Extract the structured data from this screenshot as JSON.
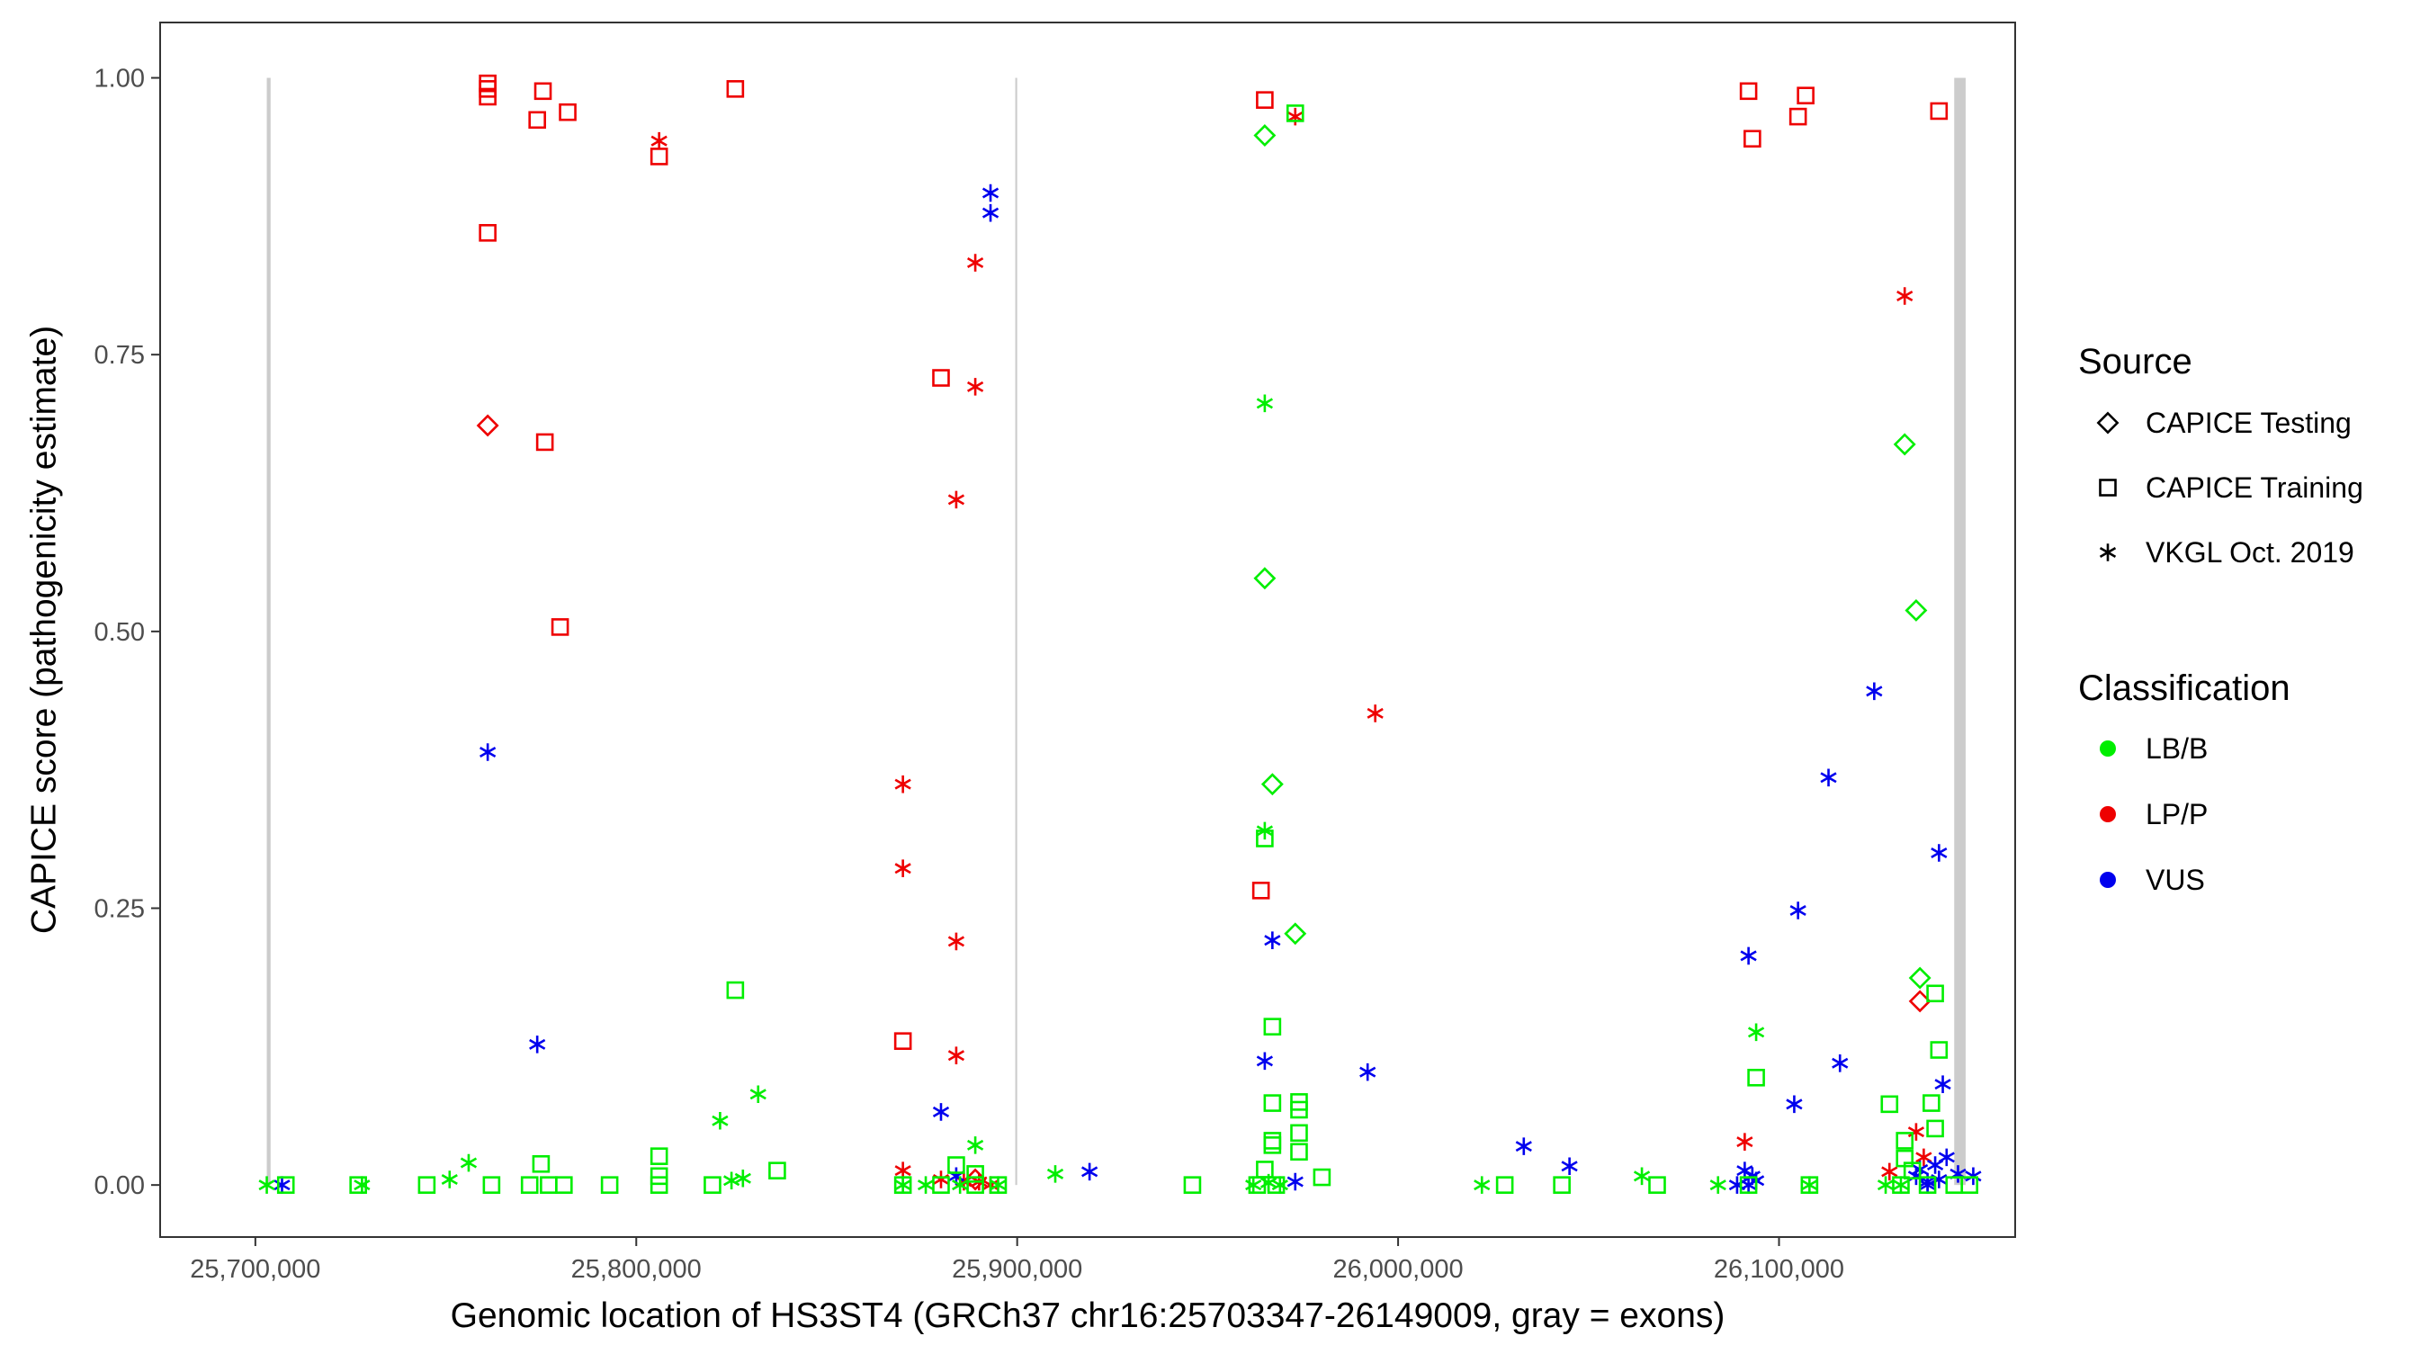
{
  "chart_data": {
    "type": "scatter",
    "xlabel": "Genomic location of HS3ST4 (GRCh37 chr16:25703347-26149009, gray = exons)",
    "ylabel": "CAPICE score (pathogenicity estimate)",
    "xlim": [
      25675000,
      26162000
    ],
    "ylim": [
      -0.047,
      1.05
    ],
    "x_ticks": [
      25700000,
      25800000,
      25900000,
      26000000,
      26100000
    ],
    "x_tick_labels": [
      "25,700,000",
      "25,800,000",
      "25,900,000",
      "26,000,000",
      "26,100,000"
    ],
    "y_ticks": [
      0,
      0.25,
      0.5,
      0.75,
      1
    ],
    "y_tick_labels": [
      "0.00",
      "0.25",
      "0.50",
      "0.75",
      "1.00"
    ],
    "exons": [
      {
        "start": 25703000,
        "end": 25704000
      },
      {
        "start": 25899500,
        "end": 25900000
      },
      {
        "start": 26146000,
        "end": 26149000
      }
    ],
    "legend": {
      "placement": "right",
      "source_title": "Source",
      "source_items": [
        {
          "label": "CAPICE Testing",
          "shape": "diamond"
        },
        {
          "label": "CAPICE Training",
          "shape": "square"
        },
        {
          "label": "VKGL Oct. 2019",
          "shape": "asterisk"
        }
      ],
      "class_title": "Classification",
      "class_items": [
        {
          "label": "LB/B",
          "color": "#00ee00"
        },
        {
          "label": "LP/P",
          "color": "#ee0000"
        },
        {
          "label": "VUS",
          "color": "#0000ee"
        }
      ]
    },
    "colors": {
      "LB/B": "#00ee00",
      "LP/P": "#ee0000",
      "VUS": "#0000ee"
    },
    "series": [
      {
        "source": "CAPICE Training",
        "classification": "LP/P",
        "points": [
          [
            25761000,
            0.995
          ],
          [
            25761000,
            0.99
          ],
          [
            25761000,
            0.983
          ],
          [
            25775500,
            0.988
          ],
          [
            25774000,
            0.962
          ],
          [
            25782000,
            0.969
          ],
          [
            25826000,
            0.99
          ],
          [
            25806000,
            0.929
          ],
          [
            25761000,
            0.86
          ],
          [
            25776000,
            0.671
          ],
          [
            25780000,
            0.504
          ],
          [
            25880000,
            0.729
          ],
          [
            25870000,
            0.13
          ],
          [
            25965000,
            0.98
          ],
          [
            25964000,
            0.266
          ],
          [
            26092000,
            0.988
          ],
          [
            26093000,
            0.945
          ],
          [
            26107000,
            0.984
          ],
          [
            26105000,
            0.965
          ],
          [
            26142000,
            0.97
          ]
        ]
      },
      {
        "source": "VKGL Oct. 2019",
        "classification": "LP/P",
        "points": [
          [
            25806000,
            0.943
          ],
          [
            25973000,
            0.965
          ],
          [
            25889000,
            0.833
          ],
          [
            25889000,
            0.721
          ],
          [
            25884000,
            0.619
          ],
          [
            25870000,
            0.362
          ],
          [
            25870000,
            0.286
          ],
          [
            25884000,
            0.22
          ],
          [
            25884000,
            0.117
          ],
          [
            25870000,
            0.013
          ],
          [
            25994000,
            0.426
          ],
          [
            26133000,
            0.803
          ],
          [
            26136000,
            0.048
          ],
          [
            26091000,
            0.039
          ],
          [
            26129000,
            0.012
          ],
          [
            26138000,
            0.025
          ],
          [
            25880000,
            0.005
          ],
          [
            25886000,
            0.003
          ],
          [
            25890000,
            0.003
          ],
          [
            25893000,
            0.0
          ]
        ]
      },
      {
        "source": "CAPICE Testing",
        "classification": "LP/P",
        "points": [
          [
            25761000,
            0.686
          ],
          [
            26137000,
            0.166
          ],
          [
            25889000,
            0.005
          ]
        ]
      },
      {
        "source": "VKGL Oct. 2019",
        "classification": "VUS",
        "points": [
          [
            25893000,
            0.896
          ],
          [
            25893000,
            0.878
          ],
          [
            25761000,
            0.391
          ],
          [
            25774000,
            0.127
          ],
          [
            25967000,
            0.221
          ],
          [
            25965000,
            0.112
          ],
          [
            25880000,
            0.066
          ],
          [
            25992000,
            0.102
          ],
          [
            26125000,
            0.446
          ],
          [
            26113000,
            0.368
          ],
          [
            26142000,
            0.3
          ],
          [
            26105000,
            0.248
          ],
          [
            26092000,
            0.207
          ],
          [
            26116000,
            0.11
          ],
          [
            26143000,
            0.091
          ],
          [
            26104000,
            0.073
          ],
          [
            26033000,
            0.035
          ],
          [
            26045000,
            0.017
          ],
          [
            25919000,
            0.012
          ],
          [
            25707000,
            0.0
          ],
          [
            25973000,
            0.003
          ],
          [
            25884000,
            0.008
          ],
          [
            26091000,
            0.013
          ],
          [
            26093000,
            0.008
          ],
          [
            26092000,
            0.0
          ],
          [
            26094000,
            0.004
          ],
          [
            26089000,
            0.0
          ],
          [
            26136000,
            0.008
          ],
          [
            26139000,
            0.003
          ],
          [
            26141000,
            0.018
          ],
          [
            26144000,
            0.025
          ],
          [
            26147000,
            0.01
          ],
          [
            26151000,
            0.008
          ],
          [
            26139000,
            0.0
          ],
          [
            26142000,
            0.005
          ],
          [
            26137000,
            0.014
          ]
        ]
      },
      {
        "source": "VKGL Oct. 2019",
        "classification": "LB/B",
        "points": [
          [
            25965000,
            0.706
          ],
          [
            25965000,
            0.32
          ],
          [
            26094000,
            0.138
          ],
          [
            25832000,
            0.082
          ],
          [
            25822000,
            0.058
          ],
          [
            25889000,
            0.036
          ],
          [
            25756000,
            0.02
          ],
          [
            25751000,
            0.005
          ],
          [
            25825000,
            0.004
          ],
          [
            25828000,
            0.006
          ],
          [
            25910000,
            0.01
          ],
          [
            26064000,
            0.008
          ],
          [
            25703000,
            0.0
          ],
          [
            25728000,
            0.0
          ],
          [
            25870000,
            0.0
          ],
          [
            25876000,
            0.0
          ],
          [
            25885000,
            0.0
          ],
          [
            25895000,
            0.0
          ],
          [
            25962000,
            0.0
          ],
          [
            25966000,
            0.002
          ],
          [
            25969000,
            0.0
          ],
          [
            26022000,
            0.0
          ],
          [
            26084000,
            0.0
          ],
          [
            26108000,
            0.0
          ],
          [
            26128000,
            0.0
          ],
          [
            26132000,
            0.0
          ]
        ]
      },
      {
        "source": "CAPICE Testing",
        "classification": "LB/B",
        "points": [
          [
            25965000,
            0.948
          ],
          [
            25965000,
            0.548
          ],
          [
            25967000,
            0.362
          ],
          [
            25973000,
            0.227
          ],
          [
            26133000,
            0.669
          ],
          [
            26136000,
            0.519
          ],
          [
            26137000,
            0.187
          ]
        ]
      },
      {
        "source": "CAPICE Training",
        "classification": "LB/B",
        "points": [
          [
            25973000,
            0.968
          ],
          [
            25826000,
            0.176
          ],
          [
            25965000,
            0.313
          ],
          [
            25967000,
            0.143
          ],
          [
            26094000,
            0.097
          ],
          [
            26141000,
            0.173
          ],
          [
            26142000,
            0.122
          ],
          [
            26129000,
            0.073
          ],
          [
            26140000,
            0.074
          ],
          [
            26141000,
            0.051
          ],
          [
            25967000,
            0.074
          ],
          [
            25974000,
            0.075
          ],
          [
            25974000,
            0.068
          ],
          [
            25974000,
            0.047
          ],
          [
            25967000,
            0.04
          ],
          [
            25967000,
            0.036
          ],
          [
            25974000,
            0.03
          ],
          [
            25806000,
            0.026
          ],
          [
            25775000,
            0.019
          ],
          [
            25884000,
            0.018
          ],
          [
            25965000,
            0.014
          ],
          [
            25837000,
            0.013
          ],
          [
            25980000,
            0.007
          ],
          [
            25806000,
            0.008
          ],
          [
            26133000,
            0.04
          ],
          [
            26133000,
            0.024
          ],
          [
            26135000,
            0.013
          ],
          [
            25889000,
            0.01
          ],
          [
            25708000,
            0.0
          ],
          [
            25727000,
            0.0
          ],
          [
            25745000,
            0.0
          ],
          [
            25762000,
            0.0
          ],
          [
            25772000,
            0.0
          ],
          [
            25777000,
            0.0
          ],
          [
            25781000,
            0.0
          ],
          [
            25793000,
            0.0
          ],
          [
            25806000,
            0.0
          ],
          [
            25820000,
            0.0
          ],
          [
            25870000,
            0.0
          ],
          [
            25880000,
            0.0
          ],
          [
            25889000,
            0.0
          ],
          [
            25895000,
            0.0
          ],
          [
            25946000,
            0.0
          ],
          [
            25963000,
            0.0
          ],
          [
            25968000,
            0.0
          ],
          [
            26028000,
            0.0
          ],
          [
            26043000,
            0.0
          ],
          [
            26068000,
            0.0
          ],
          [
            26092000,
            0.0
          ],
          [
            26108000,
            0.0
          ],
          [
            26132000,
            0.0
          ],
          [
            26139000,
            0.0
          ],
          [
            26146000,
            0.0
          ],
          [
            26150000,
            0.0
          ]
        ]
      }
    ]
  }
}
